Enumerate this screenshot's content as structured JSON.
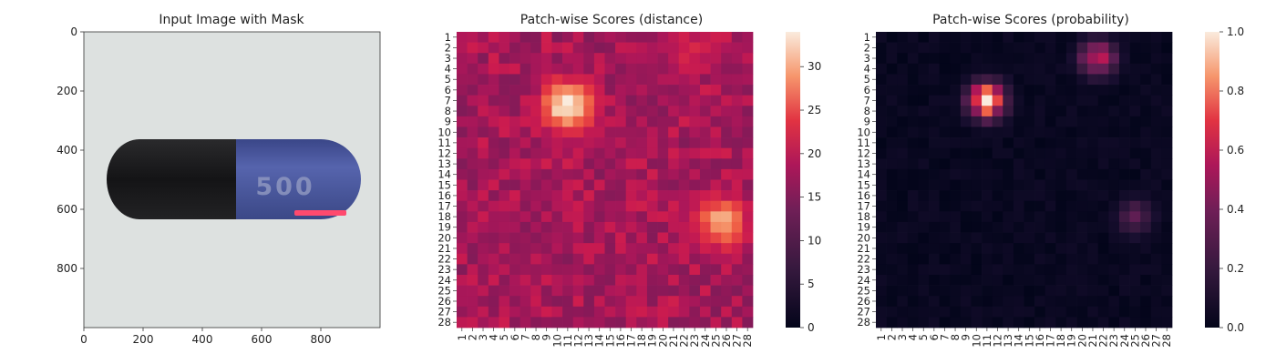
{
  "chart_data": [
    {
      "type": "image",
      "title": "Input Image with Mask",
      "xticks": [
        0,
        200,
        400,
        600,
        800
      ],
      "yticks": [
        0,
        200,
        400,
        600,
        800
      ],
      "xlim": [
        0,
        1000
      ],
      "ylim": [
        1000,
        0
      ],
      "image_text": "500",
      "colors": {
        "background": "#dde1e0",
        "cap_dark": "#1c1c1e",
        "cap_blue": "#46549a",
        "mask": "#ff4a6e"
      }
    },
    {
      "type": "heatmap",
      "title": "Patch-wise Scores (distance)",
      "grid_size": 28,
      "tick_labels": [
        "1",
        "2",
        "3",
        "4",
        "5",
        "6",
        "7",
        "8",
        "9",
        "10",
        "11",
        "12",
        "13",
        "14",
        "15",
        "16",
        "17",
        "18",
        "19",
        "20",
        "21",
        "22",
        "23",
        "24",
        "25",
        "26",
        "27",
        "28"
      ],
      "colorbar": {
        "min": 0,
        "max": 34,
        "ticks": [
          0,
          5,
          10,
          15,
          20,
          25,
          30
        ]
      },
      "colormap": "rocket",
      "baseline": 17,
      "hotspots": [
        {
          "row": 7.5,
          "col": 11,
          "peak": 34
        },
        {
          "row": 2.5,
          "col": 22.5,
          "peak": 22
        },
        {
          "row": 18.5,
          "col": 25.5,
          "peak": 30
        }
      ]
    },
    {
      "type": "heatmap",
      "title": "Patch-wise Scores (probability)",
      "grid_size": 28,
      "tick_labels": [
        "1",
        "2",
        "3",
        "4",
        "5",
        "6",
        "7",
        "8",
        "9",
        "10",
        "11",
        "12",
        "13",
        "14",
        "15",
        "16",
        "17",
        "18",
        "19",
        "20",
        "21",
        "22",
        "23",
        "24",
        "25",
        "26",
        "27",
        "28"
      ],
      "colorbar": {
        "min": 0.0,
        "max": 1.0,
        "ticks": [
          "0.0",
          "0.2",
          "0.4",
          "0.6",
          "0.8",
          "1.0"
        ]
      },
      "colormap": "rocket",
      "baseline": 0.02,
      "hotspots": [
        {
          "row": 7,
          "col": 11,
          "peak": 1.0
        },
        {
          "row": 3,
          "col": 21.5,
          "peak": 0.62
        },
        {
          "row": 18,
          "col": 25,
          "peak": 0.3
        }
      ]
    }
  ]
}
